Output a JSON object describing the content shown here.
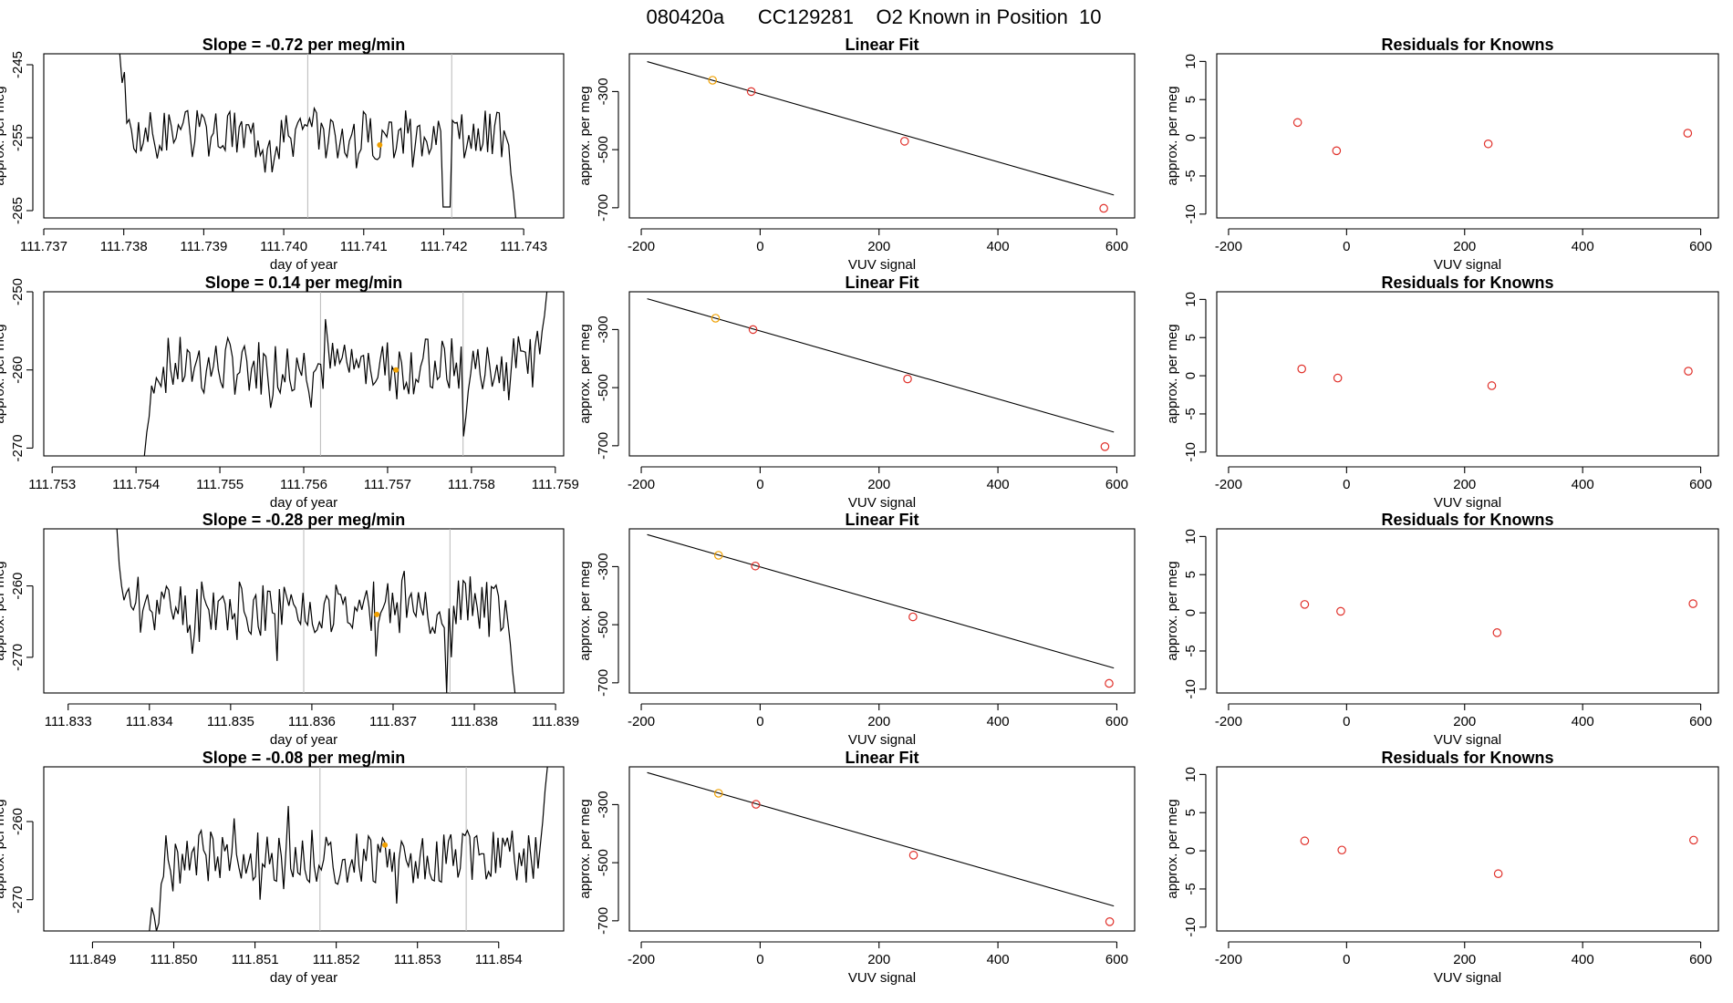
{
  "figure_title": "080420a      CC129281    O2 Known in Position  10",
  "colors": {
    "series": "#000000",
    "marker_red": "#e0302a",
    "marker_orange": "#f0a000",
    "divider": "#b8b8b8"
  },
  "chart_data": [
    {
      "type": "line",
      "title": "Slope =  -0.72  per meg/min",
      "xlabel": "day of year",
      "ylabel": "approx. per meg",
      "xlim": [
        111.737,
        111.7435
      ],
      "ylim": [
        -266,
        -243.5
      ],
      "xticks": [
        "111.737",
        "111.738",
        "111.739",
        "111.740",
        "111.741",
        "111.742",
        "111.743"
      ],
      "yticks": [
        "-245",
        "-255",
        "-265"
      ],
      "ytick_values": [
        -245,
        -255,
        -265
      ],
      "vlines": [
        111.7403,
        111.7421
      ],
      "highlight": {
        "x": 111.7412,
        "y": -256
      },
      "series": [
        {
          "x_start": 111.73795,
          "x_end": 111.7429,
          "mean": -254.5,
          "amp": 2.2,
          "seed": 3,
          "head": [
            -243.5,
            -247.5,
            -246,
            -253,
            -252.5,
            -254,
            -256.5,
            -257
          ],
          "tail": [
            -254,
            -255,
            -256,
            -260,
            -262.5,
            -266
          ],
          "spikes": [
            [
              0.816,
              -264.5
            ],
            [
              0.822,
              -264.5
            ],
            [
              0.828,
              -264.5
            ],
            [
              0.834,
              -264.5
            ],
            [
              0.8,
              -256
            ],
            [
              0.846,
              -253
            ]
          ]
        }
      ]
    },
    {
      "type": "scatter",
      "title": "Linear Fit",
      "xlabel": "VUV signal",
      "ylabel": "approx. per meg",
      "xlim": [
        -220,
        630
      ],
      "ylim": [
        -735,
        -170
      ],
      "xticks": [
        "-200",
        "0",
        "200",
        "400",
        "600"
      ],
      "xtick_values": [
        -200,
        0,
        200,
        400,
        600
      ],
      "yticks": [
        "-300",
        "-500",
        "-700"
      ],
      "ytick_values": [
        -300,
        -500,
        -700
      ],
      "fit": {
        "slope": -0.585,
        "intercept": -308
      },
      "points": [
        {
          "x": -80,
          "y": -261,
          "color": "orange"
        },
        {
          "x": -15,
          "y": -300,
          "color": "red"
        },
        {
          "x": 243,
          "y": -471,
          "color": "red"
        },
        {
          "x": 578,
          "y": -702,
          "color": "red"
        }
      ]
    },
    {
      "type": "scatter",
      "title": "Residuals for Knowns",
      "xlabel": "VUV signal",
      "ylabel": "approx. per meg",
      "xlim": [
        -220,
        630
      ],
      "ylim": [
        -10.5,
        11
      ],
      "xticks": [
        "-200",
        "0",
        "200",
        "400",
        "600"
      ],
      "xtick_values": [
        -200,
        0,
        200,
        400,
        600
      ],
      "yticks": [
        "10",
        "5",
        "0",
        "-5",
        "-10"
      ],
      "ytick_values": [
        10,
        5,
        0,
        -5,
        -10
      ],
      "points": [
        {
          "x": -83,
          "y": 2.0
        },
        {
          "x": -17,
          "y": -1.7
        },
        {
          "x": 240,
          "y": -0.8
        },
        {
          "x": 578,
          "y": 0.6
        }
      ]
    },
    {
      "type": "line",
      "title": "Slope =  0.14  per meg/min",
      "xlabel": "day of year",
      "ylabel": "approx. per meg",
      "xlim": [
        111.7529,
        111.7591
      ],
      "ylim": [
        -271,
        -250
      ],
      "xticks": [
        "111.753",
        "111.754",
        "111.755",
        "111.756",
        "111.757",
        "111.758",
        "111.759"
      ],
      "yticks": [
        "-250",
        "-260",
        "-270"
      ],
      "ytick_values": [
        -250,
        -260,
        -270
      ],
      "vlines": [
        111.7562,
        111.7579
      ],
      "highlight": {
        "x": 111.7571,
        "y": -260
      },
      "series": [
        {
          "x_start": 111.7541,
          "x_end": 111.7589,
          "mean": -259.5,
          "amp": 2.4,
          "seed": 7,
          "head": [
            -271,
            -268,
            -266,
            -262,
            -263,
            -261
          ],
          "tail": [
            -257,
            -255,
            -258,
            -255,
            -253,
            -250
          ],
          "spikes": [
            [
              0.79,
              -268.5
            ],
            [
              0.8,
              -266
            ],
            [
              0.45,
              -253.5
            ]
          ]
        }
      ]
    },
    {
      "type": "scatter",
      "title": "Linear Fit",
      "xlabel": "VUV signal",
      "ylabel": "approx. per meg",
      "xlim": [
        -220,
        630
      ],
      "ylim": [
        -735,
        -170
      ],
      "xticks": [
        "-200",
        "0",
        "200",
        "400",
        "600"
      ],
      "xtick_values": [
        -200,
        0,
        200,
        400,
        600
      ],
      "yticks": [
        "-300",
        "-500",
        "-700"
      ],
      "ytick_values": [
        -300,
        -500,
        -700
      ],
      "fit": {
        "slope": -0.585,
        "intercept": -305
      },
      "points": [
        {
          "x": -75,
          "y": -261,
          "color": "orange"
        },
        {
          "x": -12,
          "y": -300,
          "color": "red"
        },
        {
          "x": 248,
          "y": -470,
          "color": "red"
        },
        {
          "x": 580,
          "y": -703,
          "color": "red"
        }
      ]
    },
    {
      "type": "scatter",
      "title": "Residuals for Knowns",
      "xlabel": "VUV signal",
      "ylabel": "approx. per meg",
      "xlim": [
        -220,
        630
      ],
      "ylim": [
        -10.5,
        11
      ],
      "xticks": [
        "-200",
        "0",
        "200",
        "400",
        "600"
      ],
      "xtick_values": [
        -200,
        0,
        200,
        400,
        600
      ],
      "yticks": [
        "10",
        "5",
        "0",
        "-5",
        "-10"
      ],
      "ytick_values": [
        10,
        5,
        0,
        -5,
        -10
      ],
      "points": [
        {
          "x": -76,
          "y": 0.9
        },
        {
          "x": -15,
          "y": -0.3
        },
        {
          "x": 246,
          "y": -1.3
        },
        {
          "x": 579,
          "y": 0.6
        }
      ]
    },
    {
      "type": "line",
      "title": "Slope =  -0.28  per meg/min",
      "xlabel": "day of year",
      "ylabel": "approx. per meg",
      "xlim": [
        111.8327,
        111.8391
      ],
      "ylim": [
        -275,
        -252
      ],
      "xticks": [
        "111.833",
        "111.834",
        "111.835",
        "111.836",
        "111.837",
        "111.838",
        "111.839"
      ],
      "yticks": [
        "-260",
        "-270"
      ],
      "ytick_values": [
        -260,
        -270
      ],
      "vlines": [
        111.8359,
        111.8377
      ],
      "highlight": {
        "x": 111.8368,
        "y": -264
      },
      "series": [
        {
          "x_start": 111.8336,
          "x_end": 111.8385,
          "mean": -263,
          "amp": 2.4,
          "seed": 11,
          "head": [
            -252,
            -257,
            -260,
            -262,
            -261
          ],
          "tail": [
            -262,
            -265,
            -268,
            -272,
            -275
          ],
          "spikes": [
            [
              0.83,
              -275
            ],
            [
              0.84,
              -270
            ],
            [
              0.4,
              -270.5
            ],
            [
              0.19,
              -269.5
            ]
          ]
        }
      ]
    },
    {
      "type": "scatter",
      "title": "Linear Fit",
      "xlabel": "VUV signal",
      "ylabel": "approx. per meg",
      "xlim": [
        -220,
        630
      ],
      "ylim": [
        -735,
        -170
      ],
      "xticks": [
        "-200",
        "0",
        "200",
        "400",
        "600"
      ],
      "xtick_values": [
        -200,
        0,
        200,
        400,
        600
      ],
      "yticks": [
        "-300",
        "-500",
        "-700"
      ],
      "ytick_values": [
        -300,
        -500,
        -700
      ],
      "fit": {
        "slope": -0.585,
        "intercept": -301
      },
      "points": [
        {
          "x": -70,
          "y": -261,
          "color": "orange"
        },
        {
          "x": -8,
          "y": -298,
          "color": "red"
        },
        {
          "x": 257,
          "y": -473,
          "color": "red"
        },
        {
          "x": 587,
          "y": -702,
          "color": "red"
        }
      ]
    },
    {
      "type": "scatter",
      "title": "Residuals for Knowns",
      "xlabel": "VUV signal",
      "ylabel": "approx. per meg",
      "xlim": [
        -220,
        630
      ],
      "ylim": [
        -10.5,
        11
      ],
      "xticks": [
        "-200",
        "0",
        "200",
        "400",
        "600"
      ],
      "xtick_values": [
        -200,
        0,
        200,
        400,
        600
      ],
      "yticks": [
        "10",
        "5",
        "0",
        "-5",
        "-10"
      ],
      "ytick_values": [
        10,
        5,
        0,
        -5,
        -10
      ],
      "points": [
        {
          "x": -71,
          "y": 1.1
        },
        {
          "x": -10,
          "y": 0.2
        },
        {
          "x": 255,
          "y": -2.6
        },
        {
          "x": 587,
          "y": 1.2
        }
      ]
    },
    {
      "type": "line",
      "title": "Slope =  -0.08  per meg/min",
      "xlabel": "day of year",
      "ylabel": "approx. per meg",
      "xlim": [
        111.8484,
        111.8548
      ],
      "ylim": [
        -274,
        -253
      ],
      "xticks": [
        "111.849",
        "111.850",
        "111.851",
        "111.852",
        "111.853",
        "111.854"
      ],
      "yticks": [
        "-260",
        "-270"
      ],
      "ytick_values": [
        -260,
        -270
      ],
      "vlines": [
        111.8518,
        111.8536
      ],
      "highlight": {
        "x": 111.8526,
        "y": -263
      },
      "series": [
        {
          "x_start": 111.8497,
          "x_end": 111.8546,
          "mean": -264.5,
          "amp": 2.2,
          "seed": 19,
          "head": [
            -274,
            -271,
            -272,
            -274,
            -273,
            -268,
            -267
          ],
          "tail": [
            -262,
            -266,
            -263,
            -260,
            -256,
            -253
          ],
          "spikes": [
            [
              0.35,
              -258
            ],
            [
              0.62,
              -270.5
            ],
            [
              0.28,
              -270
            ]
          ]
        }
      ]
    },
    {
      "type": "scatter",
      "title": "Linear Fit",
      "xlabel": "VUV signal",
      "ylabel": "approx. per meg",
      "xlim": [
        -220,
        630
      ],
      "ylim": [
        -735,
        -170
      ],
      "xticks": [
        "-200",
        "0",
        "200",
        "400",
        "600"
      ],
      "xtick_values": [
        -200,
        0,
        200,
        400,
        600
      ],
      "yticks": [
        "-300",
        "-500",
        "-700"
      ],
      "ytick_values": [
        -300,
        -500,
        -700
      ],
      "fit": {
        "slope": -0.585,
        "intercept": -301
      },
      "points": [
        {
          "x": -70,
          "y": -261,
          "color": "orange"
        },
        {
          "x": -7,
          "y": -299,
          "color": "red"
        },
        {
          "x": 258,
          "y": -474,
          "color": "red"
        },
        {
          "x": 588,
          "y": -703,
          "color": "red"
        }
      ]
    },
    {
      "type": "scatter",
      "title": "Residuals for Knowns",
      "xlabel": "VUV signal",
      "ylabel": "approx. per meg",
      "xlim": [
        -220,
        630
      ],
      "ylim": [
        -10.5,
        11
      ],
      "xticks": [
        "-200",
        "0",
        "200",
        "400",
        "600"
      ],
      "xtick_values": [
        -200,
        0,
        200,
        400,
        600
      ],
      "yticks": [
        "10",
        "5",
        "0",
        "-5",
        "-10"
      ],
      "ytick_values": [
        10,
        5,
        0,
        -5,
        -10
      ],
      "points": [
        {
          "x": -71,
          "y": 1.3
        },
        {
          "x": -8,
          "y": 0.1
        },
        {
          "x": 257,
          "y": -3.0
        },
        {
          "x": 588,
          "y": 1.4
        }
      ]
    }
  ]
}
